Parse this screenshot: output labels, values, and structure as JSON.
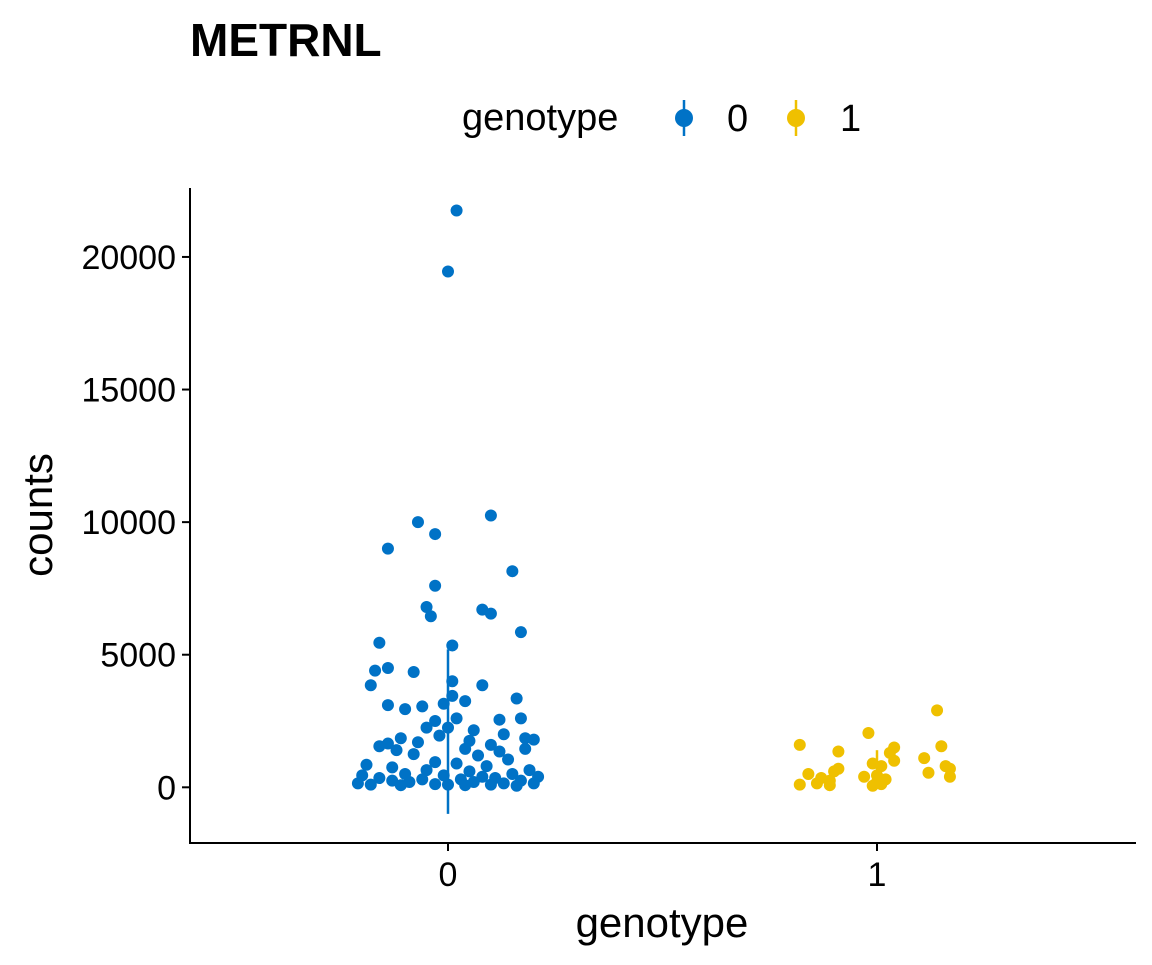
{
  "chart_data": {
    "type": "scatter",
    "title": "METRNL",
    "xlabel": "genotype",
    "ylabel": "counts",
    "categories": [
      "0",
      "1"
    ],
    "ylim": [
      -2100,
      22600
    ],
    "yticks": [
      0,
      5000,
      10000,
      15000,
      20000
    ],
    "ytick_labels": [
      "0",
      "5000",
      "10000",
      "15000",
      "20000"
    ],
    "grid": false,
    "legend": {
      "title": "genotype",
      "position": "top",
      "entries": [
        "0",
        "1"
      ]
    },
    "colors": {
      "0": "#0072C6",
      "1": "#EFC000"
    },
    "series": [
      {
        "name": "0",
        "category": "0",
        "mean": 1800,
        "lower": -1000,
        "upper": 5200,
        "points": [
          {
            "x": 0.02,
            "y": 21750
          },
          {
            "x": 0.0,
            "y": 19450
          },
          {
            "x": 0.1,
            "y": 10250
          },
          {
            "x": -0.07,
            "y": 10000
          },
          {
            "x": -0.03,
            "y": 9550
          },
          {
            "x": -0.14,
            "y": 9000
          },
          {
            "x": 0.15,
            "y": 8150
          },
          {
            "x": -0.03,
            "y": 7600
          },
          {
            "x": -0.05,
            "y": 6800
          },
          {
            "x": 0.08,
            "y": 6700
          },
          {
            "x": 0.1,
            "y": 6550
          },
          {
            "x": -0.04,
            "y": 6450
          },
          {
            "x": 0.17,
            "y": 5850
          },
          {
            "x": -0.16,
            "y": 5450
          },
          {
            "x": 0.01,
            "y": 5350
          },
          {
            "x": -0.14,
            "y": 4500
          },
          {
            "x": -0.17,
            "y": 4400
          },
          {
            "x": -0.08,
            "y": 4350
          },
          {
            "x": 0.01,
            "y": 4000
          },
          {
            "x": -0.18,
            "y": 3850
          },
          {
            "x": 0.08,
            "y": 3850
          },
          {
            "x": 0.01,
            "y": 3450
          },
          {
            "x": 0.16,
            "y": 3350
          },
          {
            "x": 0.04,
            "y": 3250
          },
          {
            "x": -0.14,
            "y": 3100
          },
          {
            "x": -0.06,
            "y": 3050
          },
          {
            "x": -0.01,
            "y": 3150
          },
          {
            "x": -0.1,
            "y": 2950
          },
          {
            "x": 0.02,
            "y": 2600
          },
          {
            "x": 0.12,
            "y": 2550
          },
          {
            "x": 0.17,
            "y": 2600
          },
          {
            "x": -0.03,
            "y": 2500
          },
          {
            "x": -0.05,
            "y": 2250
          },
          {
            "x": 0.0,
            "y": 2250
          },
          {
            "x": 0.06,
            "y": 2150
          },
          {
            "x": 0.13,
            "y": 2000
          },
          {
            "x": -0.11,
            "y": 1850
          },
          {
            "x": -0.02,
            "y": 1950
          },
          {
            "x": 0.05,
            "y": 1750
          },
          {
            "x": 0.18,
            "y": 1850
          },
          {
            "x": 0.2,
            "y": 1800
          },
          {
            "x": -0.07,
            "y": 1700
          },
          {
            "x": -0.14,
            "y": 1650
          },
          {
            "x": -0.16,
            "y": 1550
          },
          {
            "x": 0.1,
            "y": 1600
          },
          {
            "x": -0.12,
            "y": 1400
          },
          {
            "x": 0.04,
            "y": 1450
          },
          {
            "x": 0.12,
            "y": 1350
          },
          {
            "x": 0.18,
            "y": 1450
          },
          {
            "x": -0.08,
            "y": 1250
          },
          {
            "x": 0.07,
            "y": 1200
          },
          {
            "x": 0.14,
            "y": 1050
          },
          {
            "x": -0.03,
            "y": 950
          },
          {
            "x": -0.19,
            "y": 850
          },
          {
            "x": 0.02,
            "y": 900
          },
          {
            "x": 0.09,
            "y": 800
          },
          {
            "x": -0.13,
            "y": 750
          },
          {
            "x": 0.19,
            "y": 650
          },
          {
            "x": -0.05,
            "y": 650
          },
          {
            "x": 0.05,
            "y": 600
          },
          {
            "x": -0.1,
            "y": 500
          },
          {
            "x": 0.15,
            "y": 500
          },
          {
            "x": -0.2,
            "y": 450
          },
          {
            "x": -0.01,
            "y": 450
          },
          {
            "x": 0.08,
            "y": 400
          },
          {
            "x": 0.21,
            "y": 400
          },
          {
            "x": -0.16,
            "y": 350
          },
          {
            "x": 0.11,
            "y": 350
          },
          {
            "x": -0.06,
            "y": 300
          },
          {
            "x": 0.03,
            "y": 300
          },
          {
            "x": -0.13,
            "y": 250
          },
          {
            "x": 0.17,
            "y": 250
          },
          {
            "x": -0.09,
            "y": 200
          },
          {
            "x": 0.06,
            "y": 200
          },
          {
            "x": -0.21,
            "y": 150
          },
          {
            "x": 0.13,
            "y": 150
          },
          {
            "x": -0.03,
            "y": 120
          },
          {
            "x": 0.0,
            "y": 100
          },
          {
            "x": 0.1,
            "y": 100
          },
          {
            "x": 0.2,
            "y": 150
          },
          {
            "x": -0.18,
            "y": 100
          },
          {
            "x": -0.11,
            "y": 80
          },
          {
            "x": 0.04,
            "y": 80
          },
          {
            "x": 0.16,
            "y": 60
          }
        ]
      },
      {
        "name": "1",
        "category": "1",
        "mean": 700,
        "lower": 0,
        "upper": 1400,
        "points": [
          {
            "x": 0.14,
            "y": 2900
          },
          {
            "x": -0.02,
            "y": 2050
          },
          {
            "x": -0.18,
            "y": 1600
          },
          {
            "x": 0.15,
            "y": 1550
          },
          {
            "x": 0.04,
            "y": 1500
          },
          {
            "x": -0.09,
            "y": 1350
          },
          {
            "x": 0.03,
            "y": 1300
          },
          {
            "x": 0.11,
            "y": 1100
          },
          {
            "x": 0.04,
            "y": 1000
          },
          {
            "x": -0.01,
            "y": 900
          },
          {
            "x": 0.01,
            "y": 800
          },
          {
            "x": 0.16,
            "y": 800
          },
          {
            "x": -0.09,
            "y": 700
          },
          {
            "x": 0.17,
            "y": 700
          },
          {
            "x": -0.1,
            "y": 600
          },
          {
            "x": 0.12,
            "y": 550
          },
          {
            "x": -0.16,
            "y": 500
          },
          {
            "x": 0.0,
            "y": 450
          },
          {
            "x": -0.03,
            "y": 400
          },
          {
            "x": 0.17,
            "y": 400
          },
          {
            "x": -0.13,
            "y": 350
          },
          {
            "x": 0.02,
            "y": 300
          },
          {
            "x": -0.11,
            "y": 250
          },
          {
            "x": 0.0,
            "y": 200
          },
          {
            "x": -0.14,
            "y": 150
          },
          {
            "x": 0.01,
            "y": 120
          },
          {
            "x": -0.18,
            "y": 100
          },
          {
            "x": -0.11,
            "y": 80
          },
          {
            "x": -0.01,
            "y": 60
          }
        ]
      }
    ]
  }
}
